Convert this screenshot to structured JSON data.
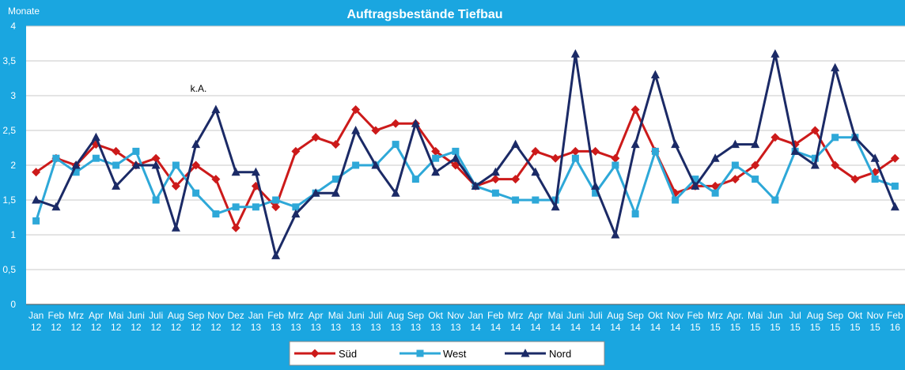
{
  "chart_data": {
    "type": "line",
    "title": "Auftragsbestände Tiefbau",
    "ylabel": "Monate",
    "ylim": [
      0,
      4
    ],
    "yticks": [
      "0",
      "0,5",
      "1",
      "1,5",
      "2",
      "2,5",
      "3",
      "3,5",
      "4"
    ],
    "grid": true,
    "legend_position": "bottom",
    "annotation": "k.A.",
    "categories": [
      [
        "Jan",
        "12"
      ],
      [
        "Feb",
        "12"
      ],
      [
        "Mrz",
        "12"
      ],
      [
        "Apr",
        "12"
      ],
      [
        "Mai",
        "12"
      ],
      [
        "Juni",
        "12"
      ],
      [
        "Juli",
        "12"
      ],
      [
        "Aug",
        "12"
      ],
      [
        "Sep",
        "12"
      ],
      [
        "Nov",
        "12"
      ],
      [
        "Dez",
        "12"
      ],
      [
        "Jan",
        "13"
      ],
      [
        "Feb",
        "13"
      ],
      [
        "Mrz",
        "13"
      ],
      [
        "Apr",
        "13"
      ],
      [
        "Mai",
        "13"
      ],
      [
        "Juni",
        "13"
      ],
      [
        "Juli",
        "13"
      ],
      [
        "Aug",
        "13"
      ],
      [
        "Sep",
        "13"
      ],
      [
        "Okt",
        "13"
      ],
      [
        "Nov",
        "13"
      ],
      [
        "Jan",
        "14"
      ],
      [
        "Feb",
        "14"
      ],
      [
        "Mrz",
        "14"
      ],
      [
        "Apr",
        "14"
      ],
      [
        "Mai",
        "14"
      ],
      [
        "Juni",
        "14"
      ],
      [
        "Juli",
        "14"
      ],
      [
        "Aug",
        "14"
      ],
      [
        "Sep",
        "14"
      ],
      [
        "Okt",
        "14"
      ],
      [
        "Nov",
        "14"
      ],
      [
        "Feb",
        "15"
      ],
      [
        "Mrz",
        "15"
      ],
      [
        "Apr.",
        "15"
      ],
      [
        "Mai",
        "15"
      ],
      [
        "Jun",
        "15"
      ],
      [
        "Jul",
        "15"
      ],
      [
        "Aug",
        "15"
      ],
      [
        "Sep",
        "15"
      ],
      [
        "Okt",
        "15"
      ],
      [
        "Nov",
        "15"
      ],
      [
        "Feb",
        "16"
      ]
    ],
    "series": [
      {
        "name": "Süd",
        "color": "#cc1a1a",
        "marker": "diamond",
        "values": [
          1.9,
          2.1,
          2.0,
          2.3,
          2.2,
          2.0,
          2.1,
          1.7,
          2.0,
          1.8,
          1.1,
          1.7,
          1.4,
          2.2,
          2.4,
          2.3,
          2.8,
          2.5,
          2.6,
          2.6,
          2.2,
          2.0,
          1.7,
          1.8,
          1.8,
          2.2,
          2.1,
          2.2,
          2.2,
          2.1,
          2.8,
          2.2,
          1.6,
          1.7,
          1.7,
          1.8,
          2.0,
          2.4,
          2.3,
          2.5,
          2.0,
          1.8,
          1.9,
          2.1
        ]
      },
      {
        "name": "West",
        "color": "#2ea8d8",
        "marker": "square",
        "values": [
          1.2,
          2.1,
          1.9,
          2.1,
          2.0,
          2.2,
          1.5,
          2.0,
          1.6,
          1.3,
          1.4,
          1.4,
          1.5,
          1.4,
          1.6,
          1.8,
          2.0,
          2.0,
          2.3,
          1.8,
          2.1,
          2.2,
          1.7,
          1.6,
          1.5,
          1.5,
          1.5,
          2.1,
          1.6,
          2.0,
          1.3,
          2.2,
          1.5,
          1.8,
          1.6,
          2.0,
          1.8,
          1.5,
          2.2,
          2.1,
          2.4,
          2.4,
          1.8,
          1.7
        ]
      },
      {
        "name": "Nord",
        "color": "#1b2a66",
        "marker": "triangle",
        "values": [
          1.5,
          1.4,
          2.0,
          2.4,
          1.7,
          2.0,
          2.0,
          1.1,
          2.3,
          2.8,
          1.9,
          1.9,
          0.7,
          1.3,
          1.6,
          1.6,
          2.5,
          2.0,
          1.6,
          2.6,
          1.9,
          2.1,
          1.7,
          1.9,
          2.3,
          1.9,
          1.4,
          3.6,
          1.7,
          1.0,
          2.3,
          3.3,
          2.3,
          1.7,
          2.1,
          2.3,
          2.3,
          3.6,
          2.2,
          2.0,
          3.4,
          2.4,
          2.1,
          1.4
        ]
      }
    ]
  }
}
